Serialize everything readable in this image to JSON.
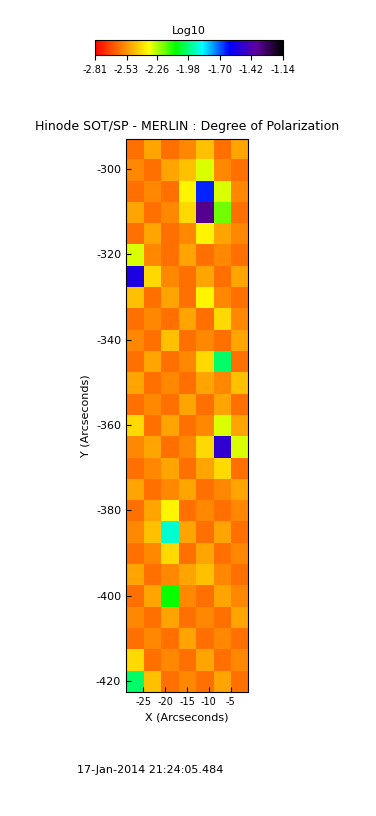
{
  "chart_data": {
    "type": "heatmap",
    "title": "Hinode SOT/SP - MERLIN : Degree of Polarization",
    "x_label": "X (Arcseconds)",
    "y_label": "Y (Arcseconds)",
    "xlim": [
      -29,
      -1
    ],
    "ylim": [
      -422.5,
      -293
    ],
    "xticks": [
      -25,
      -20,
      -15,
      -10,
      -5
    ],
    "yticks": [
      -420,
      -400,
      -380,
      -360,
      -340,
      -320,
      -300
    ],
    "cells": [
      [
        -2.6,
        -2.5,
        -2.6,
        -2.55,
        -2.45,
        -2.6,
        -2.5
      ],
      [
        -2.55,
        -2.6,
        -2.5,
        -2.45,
        -2.3,
        -2.55,
        -2.6
      ],
      [
        -2.6,
        -2.55,
        -2.6,
        -2.35,
        -1.65,
        -2.3,
        -2.55
      ],
      [
        -2.5,
        -2.6,
        -2.55,
        -2.4,
        -1.35,
        -2.2,
        -2.6
      ],
      [
        -2.6,
        -2.5,
        -2.6,
        -2.55,
        -2.35,
        -2.5,
        -2.55
      ],
      [
        -2.3,
        -2.55,
        -2.6,
        -2.5,
        -2.6,
        -2.55,
        -2.6
      ],
      [
        -1.55,
        -2.4,
        -2.55,
        -2.6,
        -2.5,
        -2.6,
        -2.5
      ],
      [
        -2.45,
        -2.6,
        -2.5,
        -2.6,
        -2.35,
        -2.55,
        -2.6
      ],
      [
        -2.6,
        -2.55,
        -2.6,
        -2.5,
        -2.6,
        -2.4,
        -2.55
      ],
      [
        -2.55,
        -2.6,
        -2.45,
        -2.6,
        -2.55,
        -2.6,
        -2.5
      ],
      [
        -2.6,
        -2.5,
        -2.6,
        -2.55,
        -2.4,
        -2.0,
        -2.6
      ],
      [
        -2.5,
        -2.6,
        -2.55,
        -2.6,
        -2.5,
        -2.55,
        -2.45
      ],
      [
        -2.6,
        -2.55,
        -2.6,
        -2.5,
        -2.6,
        -2.5,
        -2.6
      ],
      [
        -2.4,
        -2.6,
        -2.5,
        -2.6,
        -2.55,
        -2.3,
        -2.5
      ],
      [
        -2.55,
        -2.5,
        -2.6,
        -2.55,
        -2.4,
        -1.5,
        -2.3
      ],
      [
        -2.6,
        -2.55,
        -2.5,
        -2.6,
        -2.5,
        -2.4,
        -2.6
      ],
      [
        -2.5,
        -2.6,
        -2.55,
        -2.5,
        -2.6,
        -2.55,
        -2.5
      ],
      [
        -2.6,
        -2.5,
        -2.35,
        -2.6,
        -2.55,
        -2.6,
        -2.55
      ],
      [
        -2.55,
        -2.45,
        -1.9,
        -2.5,
        -2.6,
        -2.5,
        -2.6
      ],
      [
        -2.6,
        -2.55,
        -2.4,
        -2.6,
        -2.5,
        -2.6,
        -2.55
      ],
      [
        -2.5,
        -2.6,
        -2.55,
        -2.5,
        -2.45,
        -2.55,
        -2.6
      ],
      [
        -2.6,
        -2.5,
        -2.1,
        -2.55,
        -2.6,
        -2.5,
        -2.55
      ],
      [
        -2.55,
        -2.6,
        -2.5,
        -2.6,
        -2.55,
        -2.6,
        -2.5
      ],
      [
        -2.6,
        -2.55,
        -2.6,
        -2.5,
        -2.6,
        -2.55,
        -2.6
      ],
      [
        -2.4,
        -2.6,
        -2.55,
        -2.6,
        -2.5,
        -2.6,
        -2.55
      ],
      [
        -2.0,
        -2.45,
        -2.6,
        -2.55,
        -2.6,
        -2.5,
        -2.6
      ]
    ],
    "colorbar_label": "Log10",
    "colorbar_range": [
      -2.81,
      -1.14
    ],
    "colorbar_ticks": [
      -2.81,
      -2.53,
      -2.26,
      -1.98,
      {
        "value": -1.7,
        "label": "-1.70"
      },
      -1.42,
      -1.14
    ],
    "annotations": [
      "17-Jan-2014 21:24:05.484"
    ]
  }
}
